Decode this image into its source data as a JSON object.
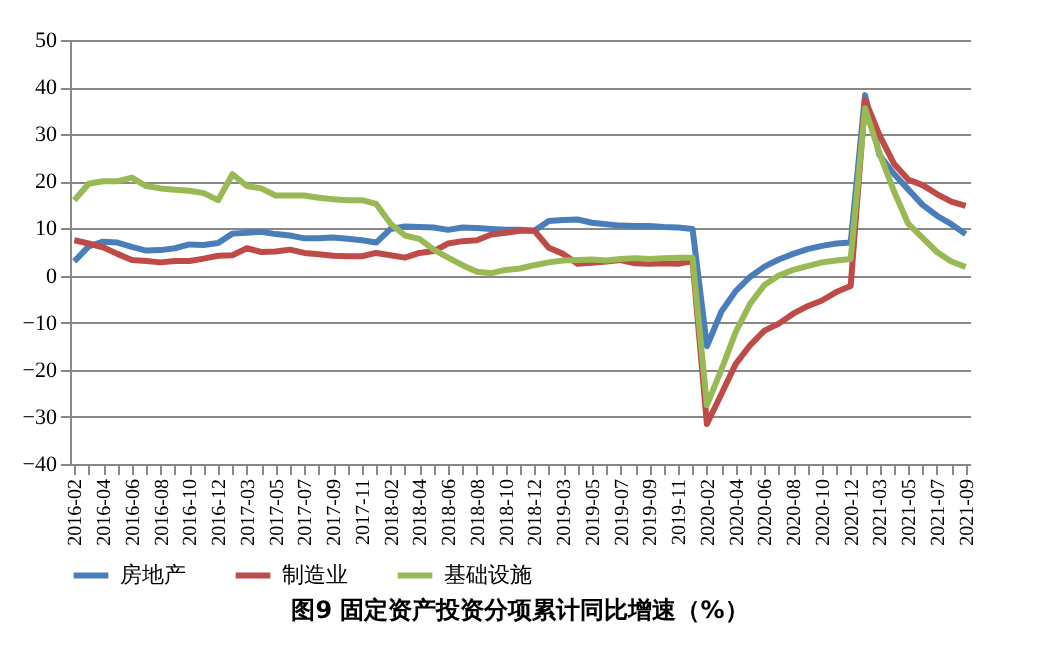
{
  "chart_data": {
    "type": "line",
    "title": "图9 固定资产投资分项累计同比增速（%）",
    "categories": [
      "2016-02",
      null,
      "2016-04",
      null,
      "2016-06",
      null,
      "2016-08",
      null,
      "2016-10",
      null,
      "2016-12",
      null,
      "2017-03",
      null,
      "2017-05",
      null,
      "2017-07",
      null,
      "2017-09",
      null,
      "2017-11",
      null,
      "2018-02",
      null,
      "2018-04",
      null,
      "2018-06",
      null,
      "2018-08",
      null,
      "2018-10",
      null,
      "2018-12",
      null,
      "2019-03",
      null,
      "2019-05",
      null,
      "2019-07",
      null,
      "2019-09",
      null,
      "2019-11",
      null,
      "2020-02",
      null,
      "2020-04",
      null,
      "2020-06",
      null,
      "2020-08",
      null,
      "2020-10",
      null,
      "2020-12",
      null,
      "2021-03",
      null,
      "2021-05",
      null,
      "2021-07",
      null,
      "2021-09"
    ],
    "series": [
      {
        "name": "房地产",
        "color": "#4a7ebb",
        "values": [
          3.0,
          6.2,
          7.2,
          7.0,
          6.1,
          5.3,
          5.4,
          5.8,
          6.6,
          6.5,
          6.9,
          8.9,
          9.1,
          9.3,
          8.8,
          8.5,
          7.9,
          7.9,
          8.1,
          7.8,
          7.5,
          7.0,
          9.9,
          10.4,
          10.3,
          10.2,
          9.7,
          10.2,
          10.1,
          9.9,
          9.7,
          9.7,
          9.5,
          11.6,
          11.8,
          11.9,
          11.2,
          10.9,
          10.6,
          10.5,
          10.5,
          10.3,
          10.2,
          9.9,
          -15,
          -7.7,
          -3.3,
          -0.3,
          1.9,
          3.4,
          4.6,
          5.6,
          6.3,
          6.8,
          7.0,
          38.3,
          25.6,
          21.6,
          18.3,
          15.0,
          12.7,
          10.9,
          8.8
        ]
      },
      {
        "name": "制造业",
        "color": "#be4b48",
        "values": [
          7.5,
          6.8,
          6.0,
          4.6,
          3.3,
          3.1,
          2.8,
          3.1,
          3.1,
          3.6,
          4.2,
          4.3,
          5.8,
          5.0,
          5.1,
          5.5,
          4.8,
          4.5,
          4.2,
          4.1,
          4.1,
          4.8,
          4.3,
          3.8,
          4.8,
          5.2,
          6.8,
          7.3,
          7.5,
          8.7,
          9.1,
          9.5,
          9.5,
          5.9,
          4.6,
          2.5,
          2.7,
          3.0,
          3.3,
          2.6,
          2.5,
          2.6,
          2.5,
          3.1,
          -31.5,
          -25.2,
          -18.8,
          -14.8,
          -11.7,
          -10.2,
          -8.1,
          -6.5,
          -5.3,
          -3.5,
          -2.2,
          37.3,
          29.8,
          23.8,
          20.4,
          19.2,
          17.3,
          15.7,
          14.8
        ]
      },
      {
        "name": "基础设施",
        "color": "#98b954",
        "values": [
          16,
          19.5,
          20,
          20,
          20.8,
          19,
          18.5,
          18.2,
          18,
          17.5,
          16,
          21.5,
          19,
          18.5,
          17,
          17,
          17,
          16.5,
          16.2,
          16,
          16,
          15.2,
          11,
          8.5,
          7.8,
          5.5,
          3.8,
          2.2,
          0.8,
          0.5,
          1.2,
          1.5,
          2.2,
          2.8,
          3.2,
          3.3,
          3.4,
          3.2,
          3.5,
          3.7,
          3.5,
          3.7,
          3.8,
          3.8,
          -27.5,
          -20,
          -12,
          -6,
          -2,
          0,
          1.2,
          2,
          2.8,
          3.2,
          3.5,
          35.5,
          26,
          18,
          11,
          8,
          5,
          3,
          1.8
        ]
      }
    ],
    "ylim": [
      -40,
      50
    ],
    "yticks": [
      -40,
      -30,
      -20,
      -10,
      0,
      10,
      20,
      30,
      40,
      50
    ],
    "grid": "y",
    "legend": "bottom",
    "marker": "none"
  }
}
